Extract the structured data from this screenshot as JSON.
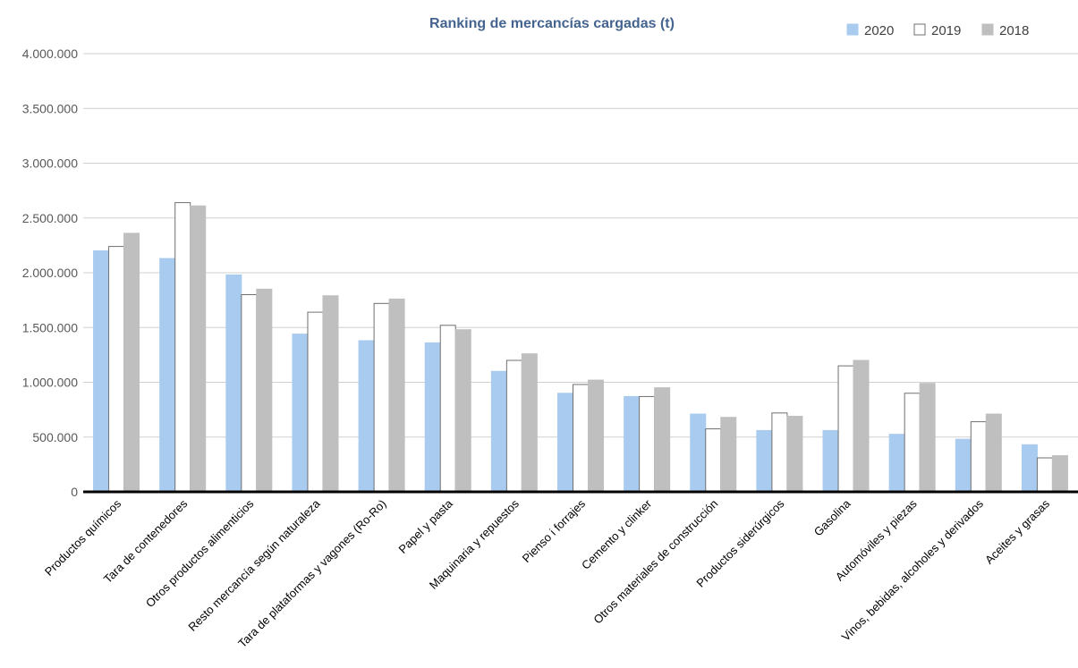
{
  "chart_data": {
    "type": "bar",
    "title": "Ranking de mercancías cargadas (t)",
    "xlabel": "",
    "ylabel": "",
    "ylim": [
      0,
      4000000
    ],
    "yticks": [
      0,
      500000,
      1000000,
      1500000,
      2000000,
      2500000,
      3000000,
      3500000,
      4000000
    ],
    "ytick_labels": [
      "0",
      "500.000",
      "1.000.000",
      "1.500.000",
      "2.000.000",
      "2.500.000",
      "3.000.000",
      "3.500.000",
      "4.000.000"
    ],
    "grid": true,
    "legend_position": "top-right",
    "categories": [
      "Productos químicos",
      "Tara de contenedores",
      "Otros productos alimenticios",
      "Resto mercancía según naturaleza",
      "Tara de plataformas y vagones (Ro-Ro)",
      "Papel y pasta",
      "Maquinaria y repuestos",
      "Pienso i forrajes",
      "Cemento y clinker",
      "Otros materiales de construcción",
      "Productos siderúrgicos",
      "Gasolina",
      "Automóviles y piezas",
      "Vinos, bebidas, alcoholes y derivados",
      "Aceites y grasas"
    ],
    "series": [
      {
        "name": "2020",
        "color": "#a9cbef",
        "stroke": "#a9cbef",
        "values": [
          2200000,
          2130000,
          1980000,
          1440000,
          1380000,
          1360000,
          1100000,
          900000,
          870000,
          710000,
          560000,
          560000,
          525000,
          480000,
          430000
        ]
      },
      {
        "name": "2019",
        "color": "#ffffff",
        "stroke": "#707070",
        "values": [
          2240000,
          2640000,
          1800000,
          1640000,
          1720000,
          1520000,
          1200000,
          980000,
          870000,
          575000,
          720000,
          1150000,
          900000,
          640000,
          310000
        ]
      },
      {
        "name": "2018",
        "color": "#bfbfbf",
        "stroke": "#bfbfbf",
        "values": [
          2360000,
          2610000,
          1850000,
          1790000,
          1760000,
          1480000,
          1260000,
          1020000,
          950000,
          680000,
          690000,
          1200000,
          990000,
          710000,
          330000
        ]
      }
    ],
    "colors": {
      "title": "#44648f",
      "axis_text": "#595959",
      "gridline": "#d0d0d0",
      "baseline": "#000000"
    }
  }
}
